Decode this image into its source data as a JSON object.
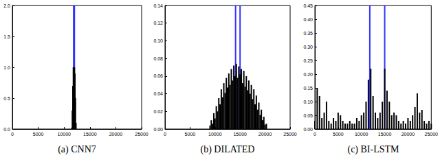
{
  "chart_data": [
    {
      "type": "bar",
      "title": "(a) CNN7",
      "xlim": [
        0,
        25000
      ],
      "xticks": [
        0,
        5000,
        10000,
        15000,
        20000,
        25000
      ],
      "ylim": [
        0,
        2.0
      ],
      "yticks": [
        {
          "value": 0,
          "label": "0.0"
        },
        {
          "value": 0.5,
          "label": "0.5"
        },
        {
          "value": 1.0,
          "label": "1.0"
        },
        {
          "value": 1.5,
          "label": "1.5"
        },
        {
          "value": 2.0,
          "label": "2.0"
        }
      ],
      "grid": false,
      "series": [
        {
          "color": "#3333ff",
          "x": [
            11850,
            12000
          ],
          "values": [
            2.0,
            2.0
          ]
        },
        {
          "color": "#000000",
          "x": [
            11500,
            11600,
            11700,
            11800,
            11900,
            12000,
            12100,
            12200,
            12300
          ],
          "values": [
            0.02,
            0.3,
            0.7,
            1.0,
            1.0,
            1.0,
            0.9,
            0.5,
            0.1
          ]
        }
      ]
    },
    {
      "type": "bar",
      "title": "(b) DILATED",
      "xlim": [
        0,
        25000
      ],
      "xticks": [
        0,
        5000,
        10000,
        15000,
        20000,
        25000
      ],
      "ylim": [
        0,
        0.14
      ],
      "yticks": [
        {
          "value": 0,
          "label": "0.00"
        },
        {
          "value": 0.02,
          "label": "0.02"
        },
        {
          "value": 0.04,
          "label": "0.04"
        },
        {
          "value": 0.06,
          "label": "0.06"
        },
        {
          "value": 0.08,
          "label": "0.08"
        },
        {
          "value": 0.1,
          "label": "0.10"
        },
        {
          "value": 0.12,
          "label": "0.12"
        },
        {
          "value": 0.14,
          "label": "0.14"
        }
      ],
      "grid": false,
      "series": [
        {
          "color": "#3333ff",
          "x": [
            14100,
            15000
          ],
          "values": [
            0.14,
            0.14
          ]
        },
        {
          "color": "#000000",
          "x": [
            9000,
            9250,
            9500,
            9750,
            10000,
            10250,
            10500,
            10750,
            11000,
            11250,
            11500,
            11750,
            12000,
            12250,
            12500,
            12750,
            13000,
            13250,
            13500,
            13750,
            14000,
            14250,
            14500,
            14750,
            15000,
            15250,
            15500,
            15750,
            16000,
            16250,
            16500,
            16750,
            17000,
            17250,
            17500,
            17750,
            18000,
            18250,
            18500,
            18750,
            19000,
            19250,
            19500,
            19750,
            20000,
            20250
          ],
          "values": [
            0.004,
            0.01,
            0.006,
            0.018,
            0.012,
            0.026,
            0.02,
            0.035,
            0.028,
            0.045,
            0.036,
            0.052,
            0.041,
            0.058,
            0.047,
            0.063,
            0.05,
            0.068,
            0.055,
            0.072,
            0.06,
            0.074,
            0.058,
            0.071,
            0.062,
            0.068,
            0.052,
            0.066,
            0.048,
            0.06,
            0.044,
            0.055,
            0.04,
            0.05,
            0.034,
            0.045,
            0.028,
            0.038,
            0.022,
            0.03,
            0.016,
            0.022,
            0.01,
            0.014,
            0.005,
            0.006
          ]
        }
      ]
    },
    {
      "type": "bar",
      "title": "(c) BI-LSTM",
      "xlim": [
        0,
        25000
      ],
      "xticks": [
        0,
        5000,
        10000,
        15000,
        20000,
        25000
      ],
      "ylim": [
        0,
        0.45
      ],
      "yticks": [
        {
          "value": 0,
          "label": "0.00"
        },
        {
          "value": 0.05,
          "label": "0.05"
        },
        {
          "value": 0.1,
          "label": "0.10"
        },
        {
          "value": 0.15,
          "label": "0.15"
        },
        {
          "value": 0.2,
          "label": "0.20"
        },
        {
          "value": 0.25,
          "label": "0.25"
        },
        {
          "value": 0.3,
          "label": "0.30"
        },
        {
          "value": 0.35,
          "label": "0.35"
        },
        {
          "value": 0.4,
          "label": "0.40"
        },
        {
          "value": 0.45,
          "label": "0.45"
        }
      ],
      "grid": false,
      "series": [
        {
          "color": "#3333ff",
          "x": [
            11800,
            15000
          ],
          "values": [
            0.45,
            0.45
          ]
        },
        {
          "color": "#000000",
          "x": [
            0,
            500,
            1000,
            1500,
            2000,
            2500,
            3000,
            3500,
            4000,
            4500,
            5000,
            5500,
            6000,
            6500,
            7000,
            7500,
            8000,
            8500,
            9000,
            9500,
            10000,
            10500,
            11000,
            11500,
            12000,
            12500,
            13000,
            13500,
            14000,
            14500,
            15000,
            15500,
            16000,
            16500,
            17000,
            17500,
            18000,
            18500,
            19000,
            19500,
            20000,
            20500,
            21000,
            21500,
            22000,
            22500,
            23000,
            23500,
            24000,
            24500,
            25000
          ],
          "values": [
            0.03,
            0.15,
            0.12,
            0.04,
            0.06,
            0.1,
            0.03,
            0.02,
            0.04,
            0.03,
            0.06,
            0.05,
            0.03,
            0.02,
            0.02,
            0.03,
            0.02,
            0.02,
            0.04,
            0.03,
            0.05,
            0.06,
            0.1,
            0.18,
            0.22,
            0.12,
            0.06,
            0.04,
            0.06,
            0.1,
            0.22,
            0.14,
            0.1,
            0.05,
            0.06,
            0.05,
            0.03,
            0.02,
            0.03,
            0.02,
            0.04,
            0.03,
            0.05,
            0.08,
            0.13,
            0.06,
            0.07,
            0.03,
            0.02,
            0.03,
            0.02
          ]
        }
      ]
    }
  ]
}
